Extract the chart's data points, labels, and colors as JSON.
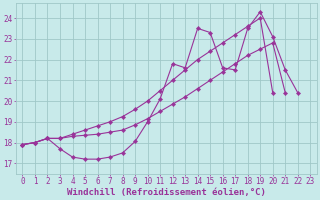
{
  "bg_color": "#c8eaea",
  "grid_color": "#a0c8c8",
  "line_color": "#993399",
  "xlabel": "Windchill (Refroidissement éolien,°C)",
  "xlabel_color": "#993399",
  "xlabel_fontsize": 6.5,
  "tick_color": "#993399",
  "tick_fontsize": 5.5,
  "ylim": [
    16.5,
    24.7
  ],
  "xlim": [
    -0.5,
    23.5
  ],
  "yticks": [
    17,
    18,
    19,
    20,
    21,
    22,
    23,
    24
  ],
  "xticks": [
    0,
    1,
    2,
    3,
    4,
    5,
    6,
    7,
    8,
    9,
    10,
    11,
    12,
    13,
    14,
    15,
    16,
    17,
    18,
    19,
    20,
    21,
    22,
    23
  ],
  "curve1_x": [
    0,
    1,
    2,
    3,
    4,
    5,
    6,
    7,
    8,
    9,
    10,
    11,
    12,
    13,
    14,
    15,
    16,
    17,
    18,
    19,
    20,
    21,
    22,
    23
  ],
  "curve1_y": [
    17.9,
    18.0,
    18.2,
    17.7,
    17.3,
    17.2,
    17.2,
    17.3,
    17.5,
    18.05,
    19.0,
    20.1,
    21.8,
    21.6,
    23.5,
    23.3,
    21.6,
    21.5,
    23.5,
    24.3,
    23.1,
    21.5,
    20.4,
    null
  ],
  "curve2_x": [
    0,
    1,
    2,
    3,
    4,
    5,
    6,
    7,
    8,
    9,
    10,
    11,
    12,
    13,
    14,
    15,
    16,
    17,
    18,
    19,
    20,
    21,
    22,
    23
  ],
  "curve2_y": [
    17.9,
    18.0,
    18.2,
    18.2,
    18.3,
    18.35,
    18.4,
    18.5,
    18.6,
    18.85,
    19.15,
    19.5,
    19.85,
    20.2,
    20.6,
    21.0,
    21.4,
    21.8,
    22.2,
    22.5,
    22.8,
    20.4,
    null,
    null
  ],
  "curve3_x": [
    0,
    1,
    2,
    3,
    4,
    5,
    6,
    7,
    8,
    9,
    10,
    11,
    12,
    13,
    14,
    15,
    16,
    17,
    18,
    19,
    20,
    21,
    22,
    23
  ],
  "curve3_y": [
    17.9,
    18.0,
    18.2,
    18.2,
    18.4,
    18.6,
    18.8,
    19.0,
    19.25,
    19.6,
    20.0,
    20.5,
    21.0,
    21.5,
    22.0,
    22.4,
    22.8,
    23.2,
    23.6,
    24.0,
    20.4,
    null,
    null,
    null
  ]
}
